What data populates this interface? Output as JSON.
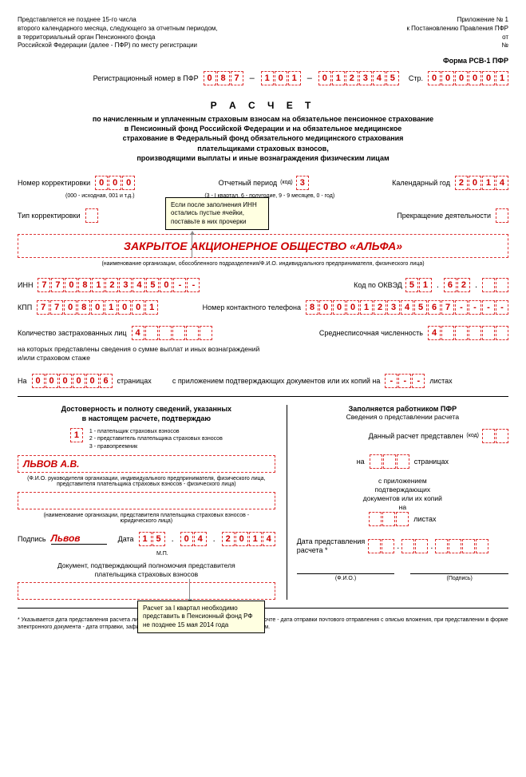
{
  "header": {
    "left_lines": [
      "Представляется не позднее 15-го числа",
      "второго календарного месяца, следующего за отчетным периодом,",
      "в территориальный орган Пенсионного фонда",
      "Российской Федерации (далее - ПФР) по месту регистрации"
    ],
    "right_lines": [
      "Приложение № 1",
      "к Постановлению Правления ПФР",
      "от",
      "№"
    ],
    "form_code": "Форма РСВ-1 ПФР"
  },
  "reg": {
    "label": "Регистрационный номер в ПФР",
    "g1": [
      "0",
      "8",
      "7"
    ],
    "g2": [
      "1",
      "0",
      "1"
    ],
    "g3": [
      "0",
      "1",
      "2",
      "3",
      "4",
      "5"
    ],
    "page_label": "Стр.",
    "page": [
      "0",
      "0",
      "0",
      "0",
      "0",
      "1"
    ]
  },
  "title": {
    "main": "Р А С Ч Е Т",
    "sub": "по начисленным и уплаченным страховым взносам на обязательное пенсионное страхование\nв Пенсионный фонд Российской Федерации и на обязательное медицинское\nстрахование в Федеральный фонд обязательного медицинского страхования\nплательщиками страховых взносов,\nпроизводящими выплаты и иные вознаграждения физическим лицам"
  },
  "r1": {
    "corr_label": "Номер корректировки",
    "corr": [
      "0",
      "0",
      "0"
    ],
    "corr_note": "(000 - исходная, 001 и т.д.)",
    "period_label": "Отчетный период",
    "period_code_label": "(код)",
    "period": [
      "3"
    ],
    "period_note": "(3 - I квартал, 6 - полугодие, 9 - 9 месяцев, 0 - год)",
    "year_label": "Календарный год",
    "year": [
      "2",
      "0",
      "1",
      "4"
    ]
  },
  "r2": {
    "type_label": "Тип корректировки",
    "tooltip": "Если после заполнения ИНН остались пустые ячейки, поставьте в них прочерки",
    "cease_label": "Прекращение деятельности"
  },
  "org": {
    "name": "ЗАКРЫТОЕ АКЦИОНЕРНОЕ ОБЩЕСТВО «АЛЬФА»",
    "note": "(наименование организации, обособленного подразделения/Ф.И.О. индивидуального предпринимателя, физического лица)"
  },
  "ids": {
    "inn_label": "ИНН",
    "inn": [
      "7",
      "7",
      "0",
      "8",
      "1",
      "2",
      "3",
      "4",
      "5",
      "0",
      "-",
      "-"
    ],
    "okved_label": "Код по ОКВЭД",
    "okved_g1": [
      "5",
      "1"
    ],
    "okved_g2": [
      "6",
      "2"
    ],
    "okved_g3": [
      "",
      ""
    ],
    "kpp_label": "КПП",
    "kpp": [
      "7",
      "7",
      "0",
      "8",
      "0",
      "1",
      "0",
      "0",
      "1"
    ],
    "phone_label": "Номер контактного телефона",
    "phone": [
      "8",
      "0",
      "0",
      "0",
      "1",
      "2",
      "3",
      "4",
      "5",
      "6",
      "7",
      "-",
      "-",
      "-",
      "-"
    ]
  },
  "counts": {
    "insured_label": "Количество застрахованных лиц",
    "insured": [
      "4",
      "",
      "",
      "",
      "",
      ""
    ],
    "insured_note": "на которых представлены сведения о сумме выплат и иных вознаграждений\nи/или страховом стаже",
    "avg_label": "Среднесписочная численность",
    "avg": [
      "4",
      "",
      "",
      "",
      "",
      ""
    ]
  },
  "pages": {
    "on_label": "На",
    "pages": [
      "0",
      "0",
      "0",
      "0",
      "0",
      "6"
    ],
    "pages_word": "страницах",
    "attach_label": "с приложением подтверждающих документов или их копий на",
    "attach": [
      "-",
      "-",
      "-"
    ],
    "sheets": "листах"
  },
  "sign": {
    "left_title": "Достоверность и полноту сведений, указанных\nв настоящем расчете, подтверждаю",
    "opts": [
      "1 - плательщик страховых взносов",
      "2 - представитель плательщика страховых взносов",
      "3 - правопреемник"
    ],
    "opt_val": "1",
    "name": "ЛЬВОВ А.В.",
    "name_note": "(Ф.И.О. руководителя организации, индивидуального предпринимателя, физического лица,\nпредставителя плательщика страховых взносов - физического лица)",
    "rep_note": "(наименование организации, представителя плательщика страховых взносов -\nюридического лица)",
    "sig_label": "Подпись",
    "sig": "Львов",
    "mp": "М.П.",
    "date_label": "Дата",
    "d": [
      "1",
      "5"
    ],
    "m": [
      "0",
      "4"
    ],
    "y": [
      "2",
      "0",
      "1",
      "4"
    ],
    "doc_note": "Документ, подтверждающий полномочия представителя\nплательщика страховых взносов",
    "tooltip2": "Расчет за I квартал необходимо представить в Пенсионный фонд РФ не позднее 15 мая 2014 года"
  },
  "right": {
    "title": "Заполняется работником ПФР",
    "sub": "Сведения о представлении расчета",
    "l1": "Данный расчет представлен",
    "code": "(код)",
    "on": "на",
    "pages": "страницах",
    "att": "с приложением\nподтверждающих\nдокументов или их копий\nна",
    "sheets": "листах",
    "date": "Дата представления\nрасчета *",
    "fio": "(Ф.И.О.)",
    "sig": "(Подпись)"
  },
  "footer": "* Указывается дата представления расчета лично или через представителя, при отправке по почте - дата отправки почтового отправления с описью вложения, при представлении в форме электронного документа - дата отправки, зафиксированная транспортным (почтовым) сервером."
}
